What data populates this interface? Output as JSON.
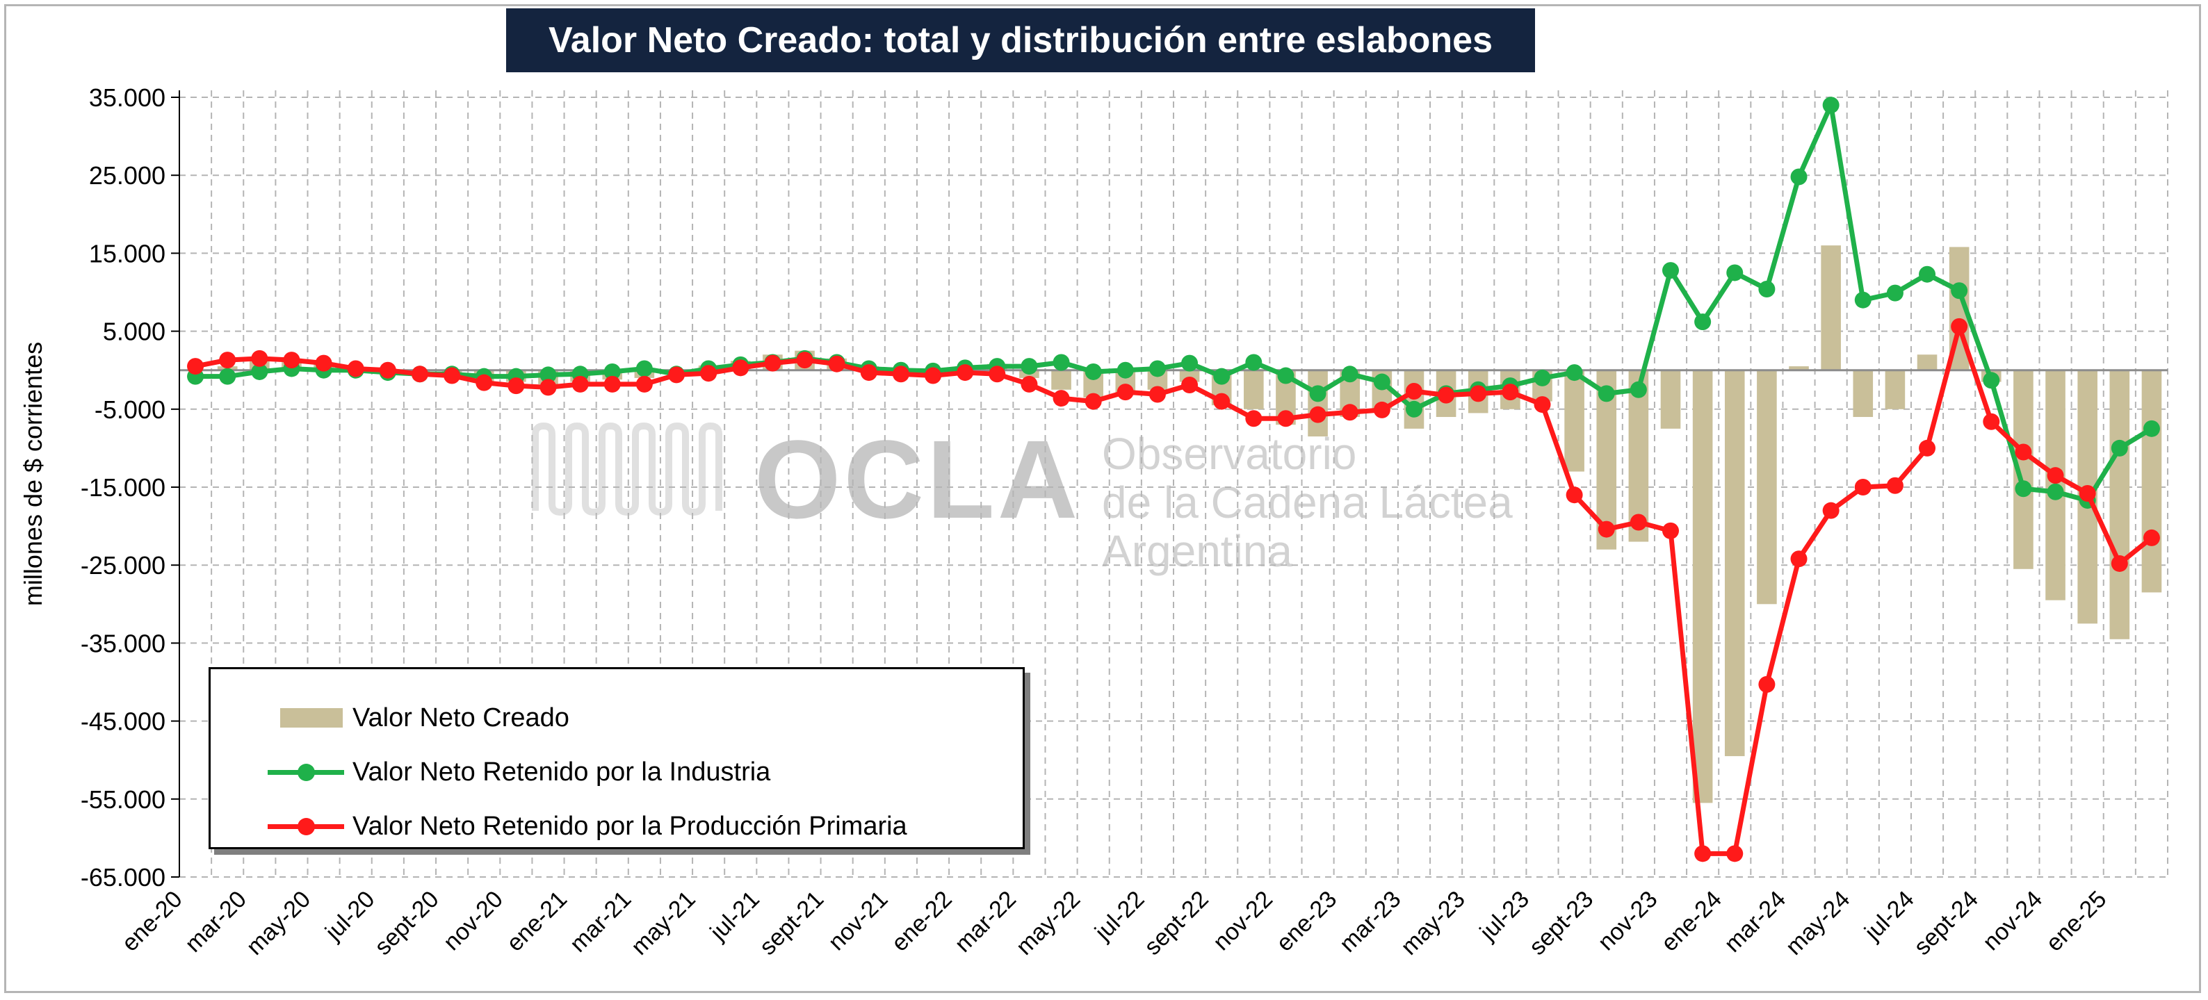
{
  "title": "Valor Neto Creado: total y distribución entre eslabones",
  "watermark": {
    "logo": "OCLA",
    "line1": "Observatorio",
    "line2": "de la Cadena Láctea",
    "line3": "Argentina"
  },
  "chart_data": {
    "type": "bar+line",
    "ylabel": "millones de $ corrientes",
    "ylim": [
      -65000,
      37000
    ],
    "yticks": [
      35000,
      25000,
      15000,
      5000,
      -5000,
      -15000,
      -25000,
      -35000,
      -45000,
      -55000,
      -65000
    ],
    "ytick_labels": [
      "35.000",
      "25.000",
      "15.000",
      "5.000",
      "-5.000",
      "-15.000",
      "-25.000",
      "-35.000",
      "-45.000",
      "-55.000",
      "-65.000"
    ],
    "grid": true,
    "legend_position": "bottom-left",
    "x": [
      "ene-20",
      "feb-20",
      "mar-20",
      "abr-20",
      "may-20",
      "jun-20",
      "jul-20",
      "ago-20",
      "sept-20",
      "oct-20",
      "nov-20",
      "dic-20",
      "ene-21",
      "feb-21",
      "mar-21",
      "abr-21",
      "may-21",
      "jun-21",
      "jul-21",
      "ago-21",
      "sept-21",
      "oct-21",
      "nov-21",
      "dic-21",
      "ene-22",
      "feb-22",
      "mar-22",
      "abr-22",
      "may-22",
      "jun-22",
      "jul-22",
      "ago-22",
      "sept-22",
      "oct-22",
      "nov-22",
      "dic-22",
      "ene-23",
      "feb-23",
      "mar-23",
      "abr-23",
      "may-23",
      "jun-23",
      "jul-23",
      "ago-23",
      "sept-23",
      "oct-23",
      "nov-23",
      "dic-23",
      "ene-24",
      "feb-24",
      "mar-24",
      "abr-24",
      "may-24",
      "jun-24",
      "jul-24",
      "ago-24",
      "sept-24",
      "oct-24",
      "nov-24",
      "dic-24",
      "ene-25",
      "feb-25"
    ],
    "x_tick_labels": [
      "ene-20",
      "mar-20",
      "may-20",
      "jul-20",
      "sept-20",
      "nov-20",
      "ene-21",
      "mar-21",
      "may-21",
      "jul-21",
      "sept-21",
      "nov-21",
      "ene-22",
      "mar-22",
      "may-22",
      "jul-22",
      "sept-22",
      "nov-22",
      "ene-23",
      "mar-23",
      "may-23",
      "jul-23",
      "sept-23",
      "nov-23",
      "ene-24",
      "mar-24",
      "may-24",
      "jul-24",
      "sept-24",
      "nov-24",
      "ene-25"
    ],
    "series": [
      {
        "name": "Valor Neto Creado",
        "kind": "bar",
        "color": "#c9bf99",
        "values": [
          0,
          500,
          1500,
          1500,
          800,
          300,
          0,
          -500,
          -800,
          -1500,
          -1500,
          -1800,
          -1500,
          -1200,
          -1000,
          -500,
          600,
          1200,
          2000,
          2500,
          1500,
          500,
          -200,
          -300,
          500,
          800,
          -1000,
          -2500,
          -3500,
          -3000,
          -2500,
          -1500,
          -4500,
          -5000,
          -7000,
          -8500,
          -6000,
          -5000,
          -7500,
          -6000,
          -5500,
          -5000,
          -4000,
          -13000,
          -23000,
          -22000,
          -7500,
          -55500,
          -49500,
          -30000,
          500,
          16000,
          -6000,
          -5000,
          2000,
          15800,
          -1500,
          -25500,
          -29500,
          -32500,
          -34500,
          -28500
        ]
      },
      {
        "name": "Valor Neto Retenido por la Industria",
        "kind": "line",
        "color": "#1fb14a",
        "values": [
          -800,
          -800,
          -200,
          200,
          0,
          0,
          -300,
          -500,
          -500,
          -800,
          -800,
          -600,
          -500,
          -200,
          200,
          -500,
          200,
          700,
          1000,
          1500,
          1000,
          200,
          0,
          -100,
          300,
          500,
          500,
          1000,
          -200,
          0,
          200,
          900,
          -800,
          1000,
          -700,
          -3000,
          -500,
          -1500,
          -5000,
          -3000,
          -2500,
          -2000,
          -1000,
          -300,
          -3000,
          -2500,
          12800,
          6200,
          12500,
          10400,
          24800,
          34000,
          9000,
          9900,
          12300,
          10200,
          -1300,
          -15200,
          -15600,
          -16700,
          -10000,
          -7500
        ]
      },
      {
        "name": "Valor Neto Retenido por la Producción Primaria",
        "kind": "line",
        "color": "#ff1a1a",
        "values": [
          500,
          1300,
          1500,
          1300,
          900,
          200,
          0,
          -500,
          -700,
          -1600,
          -2000,
          -2200,
          -1800,
          -1800,
          -1800,
          -600,
          -400,
          300,
          900,
          1300,
          800,
          -300,
          -500,
          -700,
          -300,
          -500,
          -1800,
          -3600,
          -4000,
          -2800,
          -3100,
          -1900,
          -4000,
          -6200,
          -6200,
          -5700,
          -5400,
          -5100,
          -2700,
          -3200,
          -3000,
          -2800,
          -4400,
          -16000,
          -20400,
          -19500,
          -20600,
          -62000,
          -62000,
          -40300,
          -24200,
          -18000,
          -15000,
          -14800,
          -10000,
          5600,
          -6600,
          -10500,
          -13500,
          -15800,
          -24800,
          -21500
        ]
      }
    ]
  }
}
